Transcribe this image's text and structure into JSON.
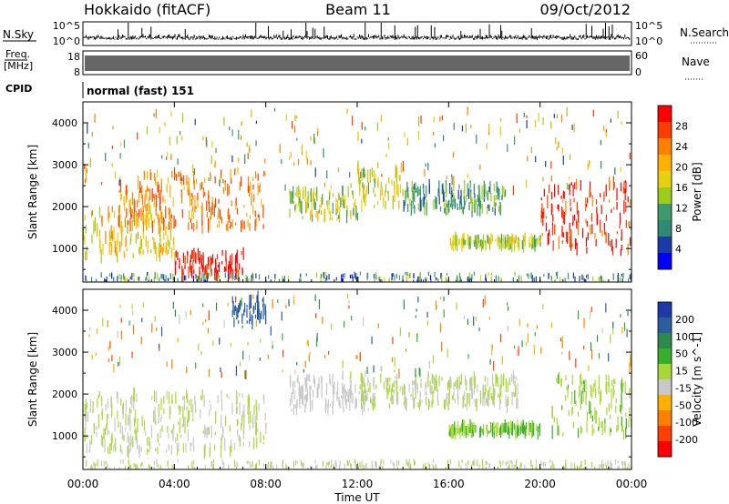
{
  "header": {
    "radar": "Hokkaido (fitACF)",
    "beam": "Beam 11",
    "date": "09/Oct/2012"
  },
  "noise_panel": {
    "left_label": "N.Sky",
    "right_label": "N.Search",
    "left_ticks": [
      "10^5",
      "10^0"
    ],
    "right_ticks": [
      "10^5",
      "10^0"
    ]
  },
  "freq_panel": {
    "left_label_top": "Freq.",
    "left_label_unit": "[MHz]",
    "left_ticks": [
      "18",
      "8"
    ],
    "right_label": "Nave",
    "right_ticks": [
      "60",
      "0"
    ]
  },
  "cpid_panel": {
    "label": "CPID",
    "mode": "normal (fast) 151"
  },
  "x_axis": {
    "label": "Time UT",
    "ticks": [
      "00:00",
      "04:00",
      "08:00",
      "12:00",
      "16:00",
      "20:00",
      "00:00"
    ]
  },
  "power_panel": {
    "ylabel": "Slant Range [km]",
    "yticks": [
      "4000",
      "3000",
      "2000",
      "1000"
    ],
    "colorbar_label": "Power [dB]",
    "colorbar_ticks": [
      "28",
      "24",
      "20",
      "16",
      "12",
      "8",
      "4"
    ],
    "colorbar_colors": [
      "#ff0000",
      "#ff3c00",
      "#ff8000",
      "#ffb000",
      "#e8d010",
      "#9ccc1c",
      "#3f9a6a",
      "#2e8a72",
      "#1a3ca8",
      "#0000ff"
    ]
  },
  "velocity_panel": {
    "ylabel": "Slant Range [km]",
    "yticks": [
      "4000",
      "3000",
      "2000",
      "1000"
    ],
    "colorbar_label": "Velocity [m s^-1]",
    "colorbar_ticks": [
      "200",
      "100",
      "50",
      "15",
      "-15",
      "-50",
      "-100",
      "-200"
    ],
    "colorbar_colors": [
      "#1e3aa8",
      "#2c5e9e",
      "#2e8a4a",
      "#36b02c",
      "#a8d838",
      "#c8c8c8",
      "#ffb000",
      "#ff8000",
      "#ff4000",
      "#ff0000"
    ]
  },
  "chart_data": {
    "type": "heatmap",
    "title": "Hokkaido (fitACF) Beam 11 09/Oct/2012",
    "xlabel": "Time UT",
    "ylabel": "Slant Range [km]",
    "xlim": [
      "00:00",
      "24:00"
    ],
    "ylim": [
      200,
      4500
    ],
    "panels": [
      {
        "name": "Power",
        "unit": "dB",
        "color_range": [
          0,
          30
        ],
        "regions": [
          {
            "time": [
              "00:00",
              "04:00"
            ],
            "range_km": [
              800,
              2000
            ],
            "value": 18
          },
          {
            "time": [
              "01:30",
              "08:00"
            ],
            "range_km": [
              1500,
              2800
            ],
            "value": 22
          },
          {
            "time": [
              "04:00",
              "07:00"
            ],
            "range_km": [
              300,
              900
            ],
            "value": 29
          },
          {
            "time": [
              "09:00",
              "12:00"
            ],
            "range_km": [
              1700,
              2400
            ],
            "value": 14
          },
          {
            "time": [
              "12:00",
              "14:00"
            ],
            "range_km": [
              2000,
              3000
            ],
            "value": 16
          },
          {
            "time": [
              "14:00",
              "18:30"
            ],
            "range_km": [
              1900,
              2500
            ],
            "value": 10
          },
          {
            "time": [
              "16:00",
              "20:00"
            ],
            "range_km": [
              1050,
              1250
            ],
            "value": 14
          },
          {
            "time": [
              "20:00",
              "24:00"
            ],
            "range_km": [
              900,
              2600
            ],
            "value": 27
          }
        ]
      },
      {
        "name": "Velocity",
        "unit": "m s^-1",
        "color_range": [
          -200,
          200
        ],
        "regions": [
          {
            "time": [
              "00:00",
              "08:00"
            ],
            "range_km": [
              600,
              2000
            ],
            "value": 0
          },
          {
            "time": [
              "09:00",
              "12:30"
            ],
            "range_km": [
              1600,
              2400
            ],
            "value": -20
          },
          {
            "time": [
              "12:00",
              "19:00"
            ],
            "range_km": [
              1700,
              2400
            ],
            "value": 0
          },
          {
            "time": [
              "16:00",
              "20:00"
            ],
            "range_km": [
              1050,
              1250
            ],
            "value": 40
          },
          {
            "time": [
              "06:30",
              "08:00"
            ],
            "range_km": [
              3700,
              4300
            ],
            "value": 150
          },
          {
            "time": [
              "20:30",
              "24:00"
            ],
            "range_km": [
              1000,
              2400
            ],
            "value": 30
          }
        ]
      }
    ]
  }
}
